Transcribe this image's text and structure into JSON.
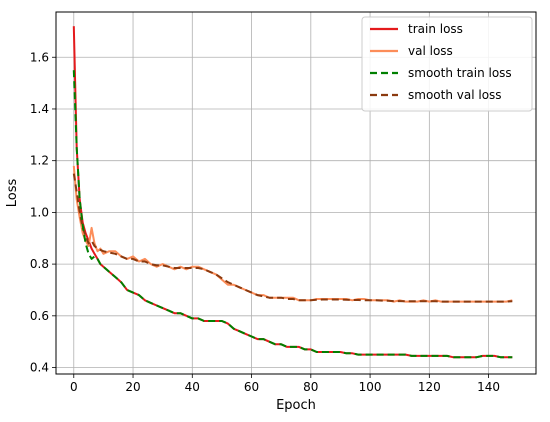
{
  "chart_data": {
    "type": "line",
    "title": "",
    "xlabel": "Epoch",
    "ylabel": "Loss",
    "xlim": [
      -6,
      156
    ],
    "ylim": [
      0.375,
      1.775
    ],
    "xticks": [
      0,
      20,
      40,
      60,
      80,
      100,
      120,
      140
    ],
    "yticks": [
      0.4,
      0.6,
      0.8,
      1.0,
      1.2,
      1.4,
      1.6
    ],
    "xtick_labels": [
      "0",
      "20",
      "40",
      "60",
      "80",
      "100",
      "120",
      "140"
    ],
    "ytick_labels": [
      "0.4",
      "0.6",
      "0.8",
      "1.0",
      "1.2",
      "1.4",
      "1.6"
    ],
    "grid": true,
    "legend_position": "top-right",
    "series": [
      {
        "name": "train loss",
        "color": "#e41a1c",
        "style": "solid",
        "x": [
          0,
          1,
          2,
          3,
          4,
          5,
          6,
          7,
          8,
          9,
          10,
          12,
          14,
          16,
          18,
          20,
          22,
          24,
          26,
          28,
          30,
          32,
          34,
          36,
          38,
          40,
          42,
          44,
          46,
          48,
          50,
          52,
          54,
          56,
          58,
          60,
          62,
          64,
          66,
          68,
          70,
          72,
          74,
          76,
          78,
          80,
          82,
          84,
          86,
          88,
          90,
          92,
          94,
          96,
          98,
          100,
          102,
          104,
          106,
          108,
          110,
          112,
          114,
          116,
          118,
          120,
          122,
          124,
          126,
          128,
          130,
          132,
          134,
          136,
          138,
          140,
          142,
          144,
          146,
          148
        ],
        "values": [
          1.72,
          1.25,
          1.05,
          0.96,
          0.92,
          0.89,
          0.86,
          0.84,
          0.82,
          0.8,
          0.79,
          0.77,
          0.75,
          0.73,
          0.7,
          0.69,
          0.68,
          0.66,
          0.65,
          0.64,
          0.63,
          0.62,
          0.61,
          0.61,
          0.6,
          0.59,
          0.59,
          0.58,
          0.58,
          0.58,
          0.58,
          0.57,
          0.55,
          0.54,
          0.53,
          0.52,
          0.51,
          0.51,
          0.5,
          0.49,
          0.49,
          0.48,
          0.48,
          0.48,
          0.47,
          0.47,
          0.46,
          0.46,
          0.46,
          0.46,
          0.46,
          0.455,
          0.455,
          0.45,
          0.45,
          0.45,
          0.45,
          0.45,
          0.45,
          0.45,
          0.45,
          0.45,
          0.445,
          0.445,
          0.445,
          0.445,
          0.445,
          0.445,
          0.445,
          0.44,
          0.44,
          0.44,
          0.44,
          0.44,
          0.445,
          0.445,
          0.445,
          0.44,
          0.44,
          0.44
        ]
      },
      {
        "name": "val loss",
        "color": "#fc8d59",
        "style": "solid",
        "x": [
          0,
          1,
          2,
          3,
          4,
          5,
          6,
          7,
          8,
          9,
          10,
          12,
          14,
          16,
          18,
          20,
          22,
          24,
          26,
          28,
          30,
          32,
          34,
          36,
          38,
          40,
          42,
          44,
          46,
          48,
          50,
          52,
          54,
          56,
          58,
          60,
          62,
          64,
          66,
          68,
          70,
          72,
          74,
          76,
          78,
          80,
          82,
          84,
          86,
          88,
          90,
          92,
          94,
          96,
          98,
          100,
          102,
          104,
          106,
          108,
          110,
          112,
          114,
          116,
          118,
          120,
          122,
          124,
          126,
          128,
          130,
          132,
          134,
          136,
          138,
          140,
          142,
          144,
          146,
          148
        ],
        "values": [
          1.18,
          1.05,
          0.98,
          0.92,
          0.89,
          0.87,
          0.94,
          0.88,
          0.85,
          0.86,
          0.84,
          0.85,
          0.85,
          0.83,
          0.82,
          0.83,
          0.81,
          0.82,
          0.8,
          0.79,
          0.8,
          0.79,
          0.78,
          0.79,
          0.78,
          0.79,
          0.79,
          0.78,
          0.77,
          0.76,
          0.74,
          0.72,
          0.72,
          0.71,
          0.7,
          0.69,
          0.68,
          0.68,
          0.67,
          0.67,
          0.67,
          0.67,
          0.67,
          0.66,
          0.66,
          0.66,
          0.665,
          0.665,
          0.665,
          0.665,
          0.665,
          0.665,
          0.66,
          0.665,
          0.665,
          0.66,
          0.66,
          0.66,
          0.66,
          0.655,
          0.66,
          0.655,
          0.655,
          0.655,
          0.66,
          0.655,
          0.66,
          0.655,
          0.655,
          0.655,
          0.655,
          0.655,
          0.655,
          0.655,
          0.655,
          0.655,
          0.655,
          0.655,
          0.655,
          0.66
        ]
      },
      {
        "name": "smooth train loss",
        "color": "#008000",
        "style": "dashed",
        "x": [
          0,
          1,
          2,
          3,
          4,
          5,
          6,
          7,
          8,
          9,
          10,
          12,
          14,
          16,
          18,
          20,
          22,
          24,
          26,
          28,
          30,
          32,
          34,
          36,
          38,
          40,
          42,
          44,
          46,
          48,
          50,
          52,
          54,
          56,
          58,
          60,
          62,
          64,
          66,
          68,
          70,
          72,
          74,
          76,
          78,
          80,
          82,
          84,
          86,
          88,
          90,
          92,
          94,
          96,
          98,
          100,
          102,
          104,
          106,
          108,
          110,
          112,
          114,
          116,
          118,
          120,
          122,
          124,
          126,
          128,
          130,
          132,
          134,
          136,
          138,
          140,
          142,
          144,
          146,
          148
        ],
        "values": [
          1.55,
          1.25,
          1.05,
          0.95,
          0.88,
          0.84,
          0.82,
          0.83,
          0.82,
          0.8,
          0.79,
          0.77,
          0.75,
          0.73,
          0.7,
          0.69,
          0.68,
          0.66,
          0.65,
          0.64,
          0.63,
          0.62,
          0.61,
          0.61,
          0.6,
          0.59,
          0.59,
          0.58,
          0.58,
          0.58,
          0.58,
          0.57,
          0.55,
          0.54,
          0.53,
          0.52,
          0.51,
          0.51,
          0.5,
          0.49,
          0.49,
          0.48,
          0.48,
          0.48,
          0.47,
          0.47,
          0.46,
          0.46,
          0.46,
          0.46,
          0.46,
          0.455,
          0.455,
          0.45,
          0.45,
          0.45,
          0.45,
          0.45,
          0.45,
          0.45,
          0.45,
          0.45,
          0.445,
          0.445,
          0.445,
          0.445,
          0.445,
          0.445,
          0.445,
          0.44,
          0.44,
          0.44,
          0.44,
          0.44,
          0.445,
          0.445,
          0.445,
          0.44,
          0.44,
          0.44
        ]
      },
      {
        "name": "smooth val loss",
        "color": "#8b3a0f",
        "style": "dashed",
        "x": [
          0,
          1,
          2,
          3,
          4,
          5,
          6,
          7,
          8,
          9,
          10,
          12,
          14,
          16,
          18,
          20,
          22,
          24,
          26,
          28,
          30,
          32,
          34,
          36,
          38,
          40,
          42,
          44,
          46,
          48,
          50,
          52,
          54,
          56,
          58,
          60,
          62,
          64,
          66,
          68,
          70,
          72,
          74,
          76,
          78,
          80,
          82,
          84,
          86,
          88,
          90,
          92,
          94,
          96,
          98,
          100,
          102,
          104,
          106,
          108,
          110,
          112,
          114,
          116,
          118,
          120,
          122,
          124,
          126,
          128,
          130,
          132,
          134,
          136,
          138,
          140,
          142,
          144,
          146,
          148
        ],
        "values": [
          1.15,
          1.08,
          1.0,
          0.94,
          0.91,
          0.88,
          0.89,
          0.87,
          0.86,
          0.855,
          0.85,
          0.845,
          0.84,
          0.83,
          0.82,
          0.82,
          0.81,
          0.81,
          0.8,
          0.795,
          0.795,
          0.79,
          0.785,
          0.785,
          0.785,
          0.785,
          0.785,
          0.78,
          0.77,
          0.76,
          0.745,
          0.73,
          0.72,
          0.71,
          0.7,
          0.69,
          0.68,
          0.675,
          0.67,
          0.67,
          0.67,
          0.665,
          0.665,
          0.66,
          0.66,
          0.66,
          0.662,
          0.663,
          0.663,
          0.663,
          0.663,
          0.662,
          0.661,
          0.661,
          0.66,
          0.66,
          0.66,
          0.659,
          0.658,
          0.657,
          0.657,
          0.656,
          0.656,
          0.656,
          0.656,
          0.656,
          0.656,
          0.655,
          0.655,
          0.655,
          0.655,
          0.655,
          0.655,
          0.655,
          0.655,
          0.655,
          0.655,
          0.655,
          0.655,
          0.656
        ]
      }
    ]
  }
}
